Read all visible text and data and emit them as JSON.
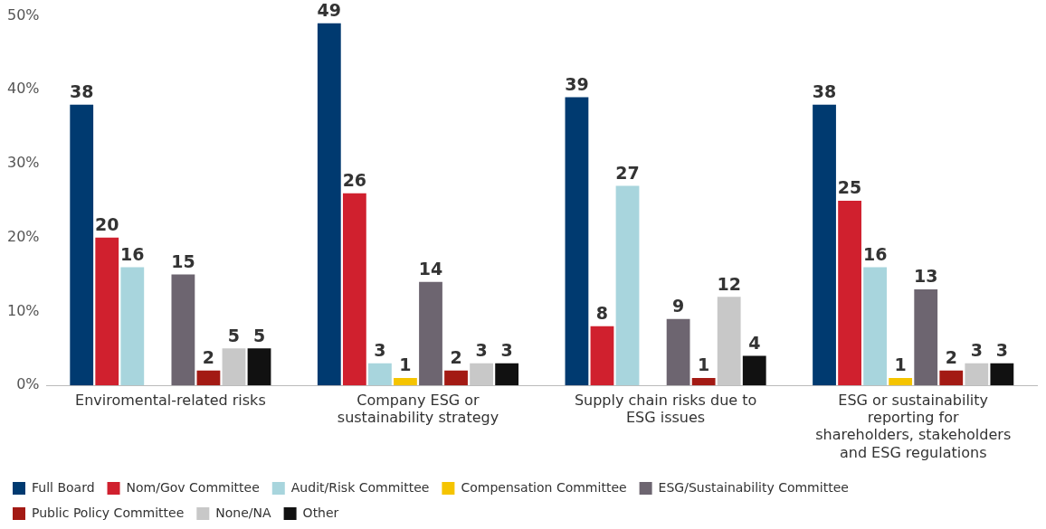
{
  "chart_data": {
    "type": "bar",
    "categories": [
      "Enviromental-related risks",
      "Company ESG or sustainability strategy",
      "Supply chain risks due to ESG issues",
      "ESG or sustainability reporting for shareholders, stakeholders and ESG regulations"
    ],
    "series": [
      {
        "name": "Full Board",
        "color": "#003a70",
        "values": [
          38,
          49,
          39,
          38
        ]
      },
      {
        "name": "Nom/Gov Committee",
        "color": "#d0202e",
        "values": [
          20,
          26,
          8,
          25
        ]
      },
      {
        "name": "Audit/Risk Committee",
        "color": "#a8d5dd",
        "values": [
          16,
          3,
          27,
          16
        ]
      },
      {
        "name": "Compensation Committee",
        "color": "#f5c400",
        "values": [
          null,
          1,
          null,
          1
        ]
      },
      {
        "name": "ESG/Sustainability Committee",
        "color": "#6d6570",
        "values": [
          15,
          14,
          9,
          13
        ]
      },
      {
        "name": "Public Policy Committee",
        "color": "#a31a14",
        "values": [
          2,
          2,
          1,
          2
        ]
      },
      {
        "name": "None/NA",
        "color": "#c8c8c8",
        "values": [
          5,
          3,
          12,
          3
        ]
      },
      {
        "name": "Other",
        "color": "#111111",
        "values": [
          5,
          3,
          4,
          3
        ]
      }
    ],
    "ylim": [
      0,
      50
    ],
    "yticks": [
      {
        "value": 0,
        "label": "0%"
      },
      {
        "value": 10,
        "label": "10%"
      },
      {
        "value": 20,
        "label": "20%"
      },
      {
        "value": 30,
        "label": "30%"
      },
      {
        "value": 40,
        "label": "40%"
      },
      {
        "value": 50,
        "label": "50%"
      }
    ],
    "grid": false,
    "legend": "bottom",
    "data_labels": true
  }
}
